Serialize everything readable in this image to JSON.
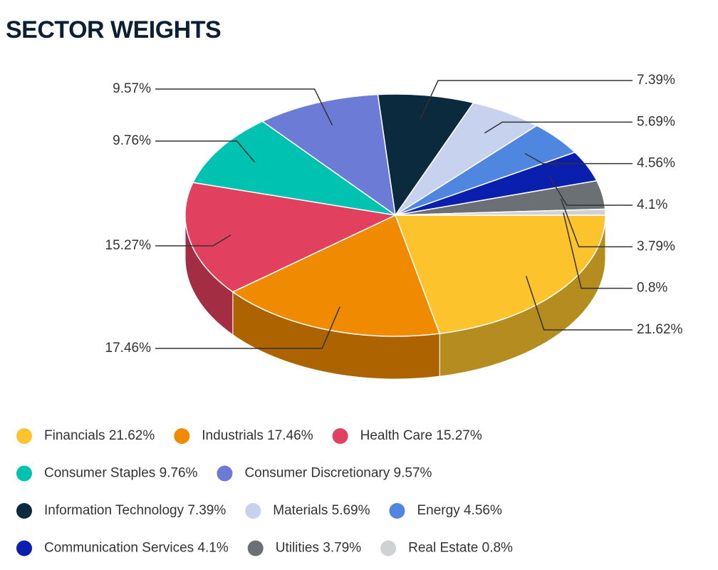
{
  "chart_data": {
    "type": "pie",
    "title": "SECTOR WEIGHTS",
    "categories": [
      "Financials",
      "Industrials",
      "Health Care",
      "Consumer Staples",
      "Consumer Discretionary",
      "Information Technology",
      "Materials",
      "Energy",
      "Communication Services",
      "Utilities",
      "Real Estate"
    ],
    "values": [
      21.62,
      17.46,
      15.27,
      9.76,
      9.57,
      7.39,
      5.69,
      4.56,
      4.1,
      3.79,
      0.8
    ],
    "value_labels": [
      "21.62%",
      "17.46%",
      "15.27%",
      "9.76%",
      "9.57%",
      "7.39%",
      "5.69%",
      "4.56%",
      "4.1%",
      "3.79%",
      "0.8%"
    ],
    "colors": [
      "#fcc32c",
      "#f08a00",
      "#e2405f",
      "#00c2b0",
      "#6b7bd6",
      "#0b2a3e",
      "#c7d2ee",
      "#4f86e0",
      "#0a1fad",
      "#6b7075",
      "#cfd1d2"
    ]
  }
}
